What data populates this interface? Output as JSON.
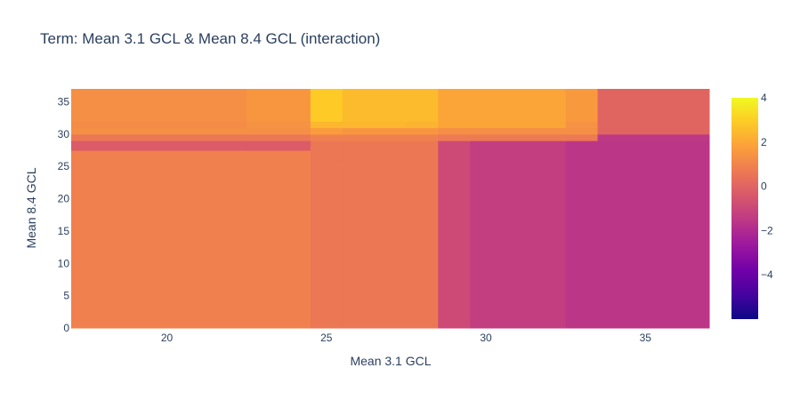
{
  "chart_data": {
    "type": "heatmap",
    "title": "Term: Mean 3.1 GCL & Mean 8.4 GCL (interaction)",
    "xlabel": "Mean 3.1 GCL",
    "ylabel": "Mean 8.4 GCL",
    "xlim": [
      17,
      37
    ],
    "ylim": [
      0,
      37
    ],
    "x_ticks": [
      20,
      25,
      30,
      35
    ],
    "y_ticks": [
      0,
      5,
      10,
      15,
      20,
      25,
      30,
      35
    ],
    "x_edges": [
      17,
      22.5,
      24.5,
      25.5,
      27.5,
      28.5,
      29.5,
      32.5,
      33.5,
      37
    ],
    "y_edges": [
      0,
      26,
      27.5,
      29,
      30,
      31,
      32,
      37
    ],
    "z": [
      [
        0.9,
        0.9,
        0.6,
        0.6,
        0.6,
        -0.9,
        -1.3,
        -1.6,
        -1.6
      ],
      [
        0.9,
        0.9,
        0.6,
        0.6,
        0.6,
        -0.9,
        -1.3,
        -1.6,
        -1.6
      ],
      [
        -0.3,
        -0.3,
        0.6,
        0.6,
        0.6,
        -0.9,
        -1.3,
        -1.6,
        -1.6
      ],
      [
        0.6,
        0.6,
        0.9,
        0.9,
        0.9,
        0.7,
        0.7,
        0.7,
        -1.5
      ],
      [
        1.3,
        1.3,
        1.7,
        1.5,
        1.5,
        1.3,
        1.3,
        1.3,
        0.0
      ],
      [
        1.2,
        1.4,
        2.4,
        2.4,
        2.3,
        1.9,
        1.9,
        1.4,
        0.0
      ],
      [
        1.3,
        1.5,
        2.9,
        2.5,
        2.5,
        1.9,
        1.9,
        1.6,
        0.0
      ]
    ],
    "colorscale": [
      "#0d0887",
      "#46039f",
      "#7201a8",
      "#9c179e",
      "#bd3786",
      "#d8576b",
      "#ed7953",
      "#fb9f3a",
      "#fdca26",
      "#f0f921"
    ],
    "zmin": -6,
    "zmax": 4,
    "colorbar_ticks": [
      4,
      2,
      0,
      -2,
      -4
    ]
  }
}
